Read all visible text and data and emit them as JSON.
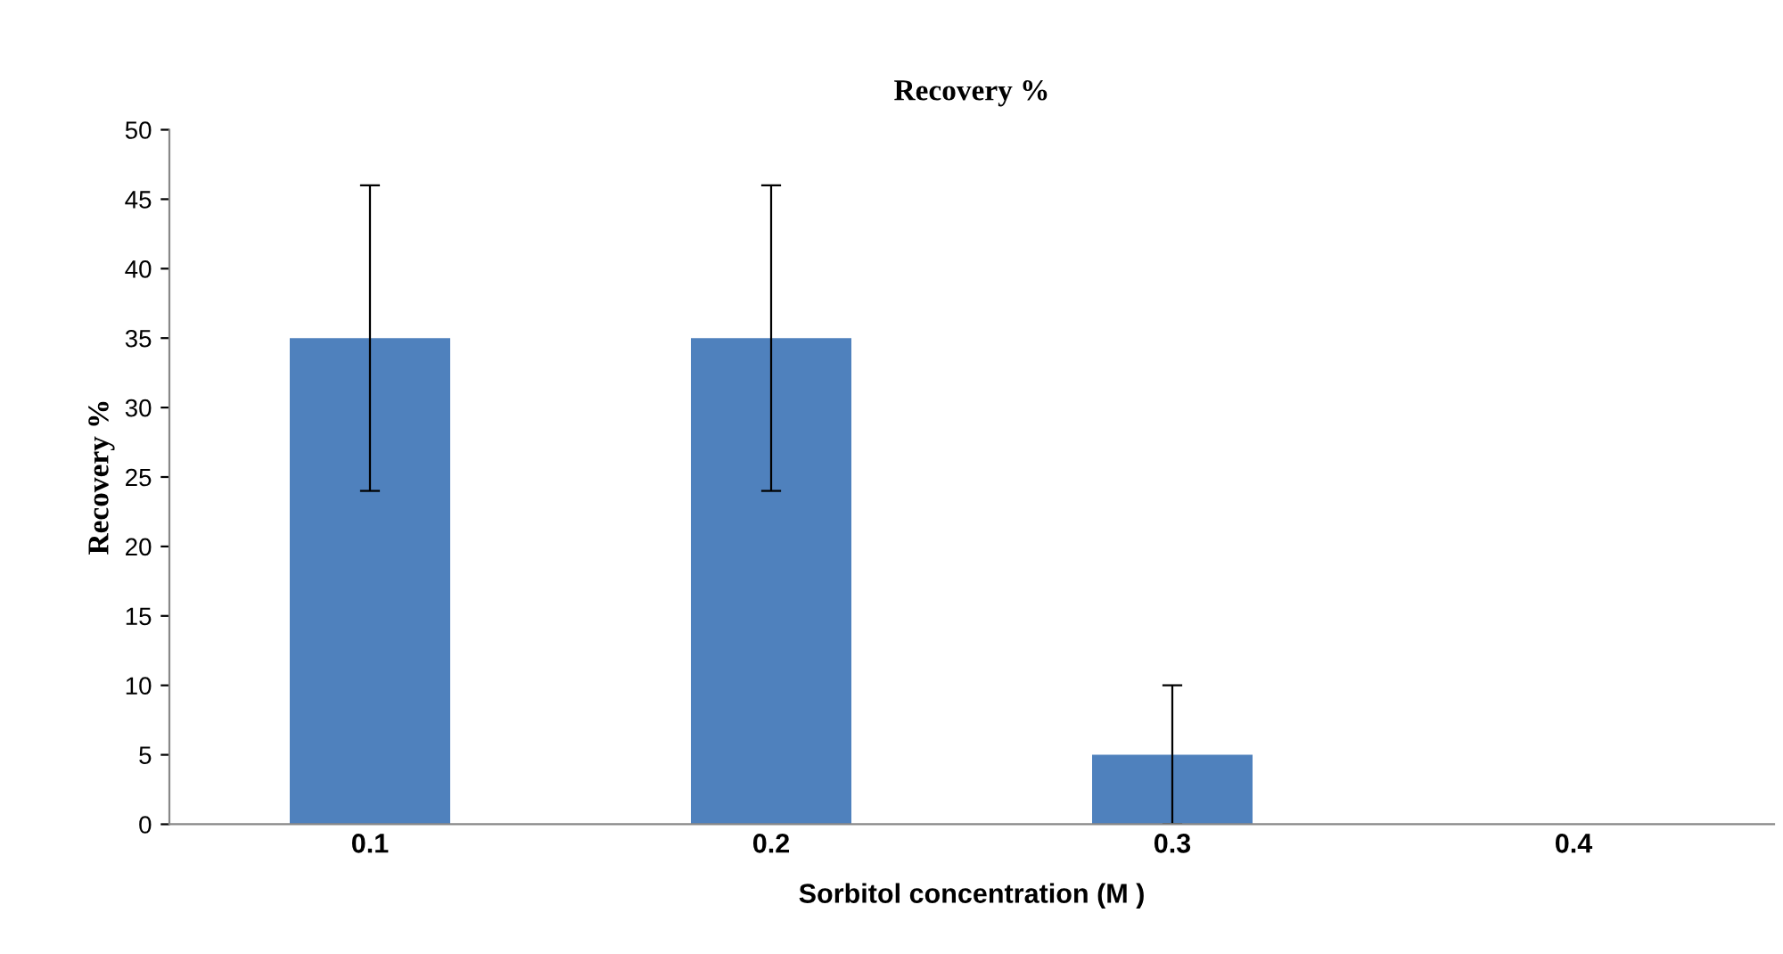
{
  "chart_data": {
    "type": "bar",
    "title": "Recovery %",
    "xlabel": "Sorbitol concentration (M )",
    "ylabel": "Recovery %",
    "categories": [
      "0.1",
      "0.2",
      "0.3",
      "0.4"
    ],
    "values": [
      35,
      35,
      5,
      0
    ],
    "errors": [
      11,
      11,
      5,
      null
    ],
    "color": "#4f81bd",
    "ylim": [
      0,
      50
    ],
    "yticks": [
      0,
      5,
      10,
      15,
      20,
      25,
      30,
      35,
      40,
      45,
      50
    ],
    "grid": false,
    "legend": false
  }
}
